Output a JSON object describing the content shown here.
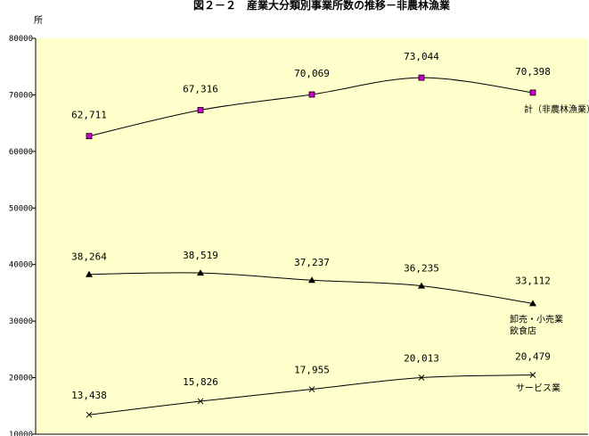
{
  "chart_data": {
    "type": "line",
    "title": "図２－２　産業大分類別事業所数の推移－非農林漁業",
    "unit_label": "所",
    "xlabel": "",
    "ylabel": "",
    "ylim": [
      10000,
      80000
    ],
    "yticks": [
      10000,
      20000,
      30000,
      40000,
      50000,
      60000,
      70000,
      80000
    ],
    "grid": false,
    "background": "#ffffcc",
    "categories": [
      "",
      "",
      "",
      "",
      ""
    ],
    "series": [
      {
        "name": "計（非農林漁業）",
        "values": [
          62711,
          67316,
          70069,
          73044,
          70398
        ],
        "labels": [
          "62,711",
          "67,316",
          "70,069",
          "73,044",
          "70,398"
        ],
        "marker": "square",
        "marker_color": "#cc00cc"
      },
      {
        "name": "卸売・小売業\n飲食店",
        "values": [
          38264,
          38519,
          37237,
          36235,
          33112
        ],
        "labels": [
          "38,264",
          "38,519",
          "37,237",
          "36,235",
          "33,112"
        ],
        "marker": "triangle",
        "marker_color": "#000000"
      },
      {
        "name": "サービス業",
        "values": [
          13438,
          15826,
          17955,
          20013,
          20479
        ],
        "labels": [
          "13,438",
          "15,826",
          "17,955",
          "20,013",
          "20,479"
        ],
        "marker": "cross",
        "marker_color": "#000000"
      }
    ]
  }
}
